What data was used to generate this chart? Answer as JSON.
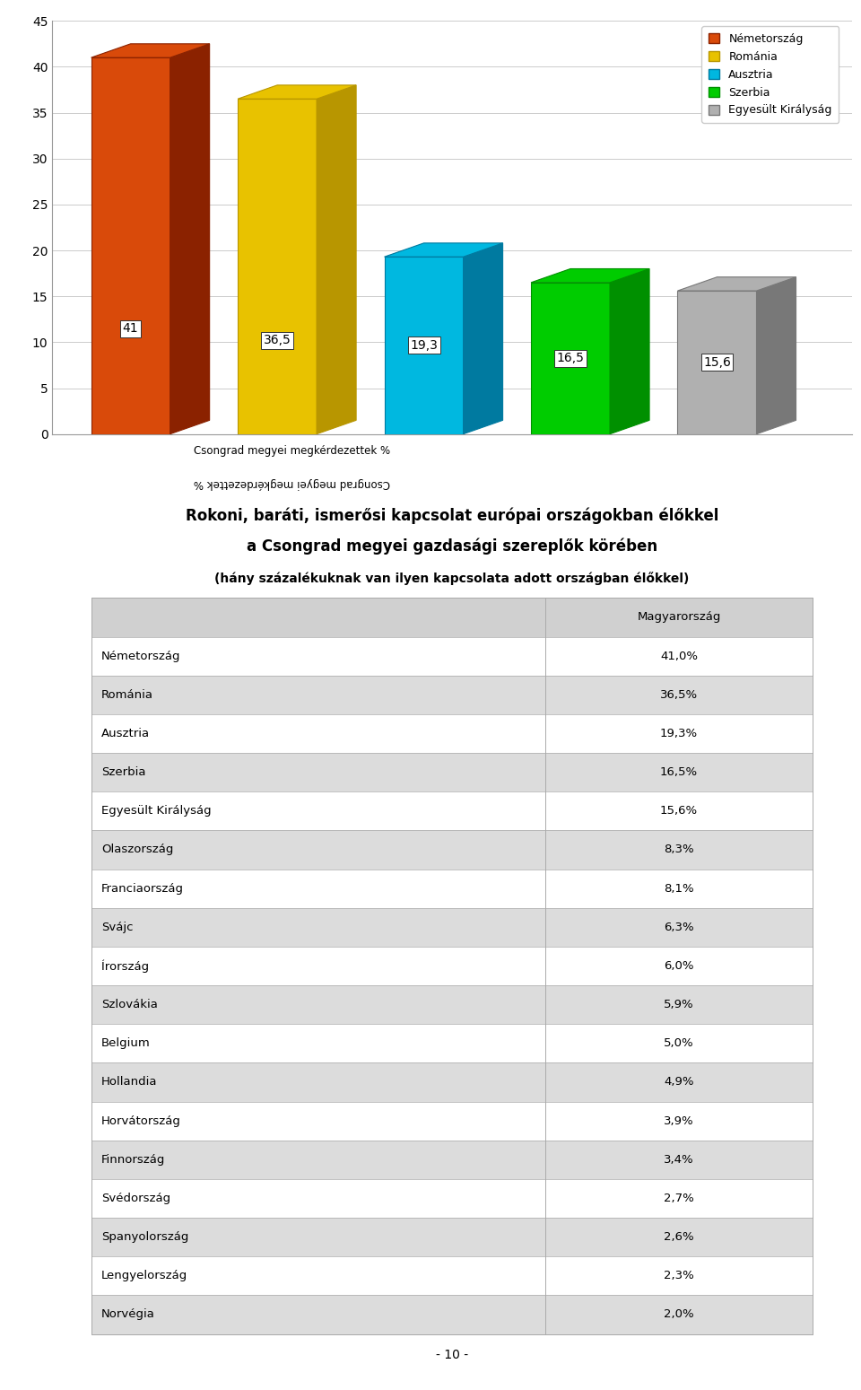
{
  "bar_categories": [
    "Németország",
    "Románia",
    "Ausztria",
    "Szerbia",
    "Egyesült Királyság"
  ],
  "bar_values": [
    41.0,
    36.5,
    19.3,
    16.5,
    15.6
  ],
  "bar_colors": [
    "#D94A0A",
    "#E8C200",
    "#00B8E0",
    "#00CC00",
    "#B0B0B0"
  ],
  "bar_dark_colors": [
    "#8B2200",
    "#B89600",
    "#007AA0",
    "#009000",
    "#787878"
  ],
  "bar_labels": [
    "41",
    "36,5",
    "19,3",
    "16,5",
    "15,6"
  ],
  "legend_labels": [
    "Németország",
    "Románia",
    "Ausztria",
    "Szerbia",
    "Egyesült Királyság"
  ],
  "legend_colors": [
    "#D94A0A",
    "#E8C200",
    "#00B8E0",
    "#00CC00",
    "#B0B0B0"
  ],
  "legend_edge_colors": [
    "#8B2200",
    "#B89600",
    "#007AA0",
    "#009000",
    "#787878"
  ],
  "ylabel": "Csongrad megyei megkérdezettek %",
  "ylim": [
    0,
    45
  ],
  "yticks": [
    0,
    5,
    10,
    15,
    20,
    25,
    30,
    35,
    40,
    45
  ],
  "title_line1": "Rokoni, baráti, ismerősi kapcsolat európai országokban élőkkel",
  "title_line2": "a Csongrad megyei gazdasági szereplők körében",
  "title_line3": "(hány százalékuknak van ilyen kapcsolata adott országban élőkkel)",
  "table_header": "Magyarország",
  "table_rows": [
    [
      "Németország",
      "41,0%"
    ],
    [
      "Románia",
      "36,5%"
    ],
    [
      "Ausztria",
      "19,3%"
    ],
    [
      "Szerbia",
      "16,5%"
    ],
    [
      "Egyesült Királyság",
      "15,6%"
    ],
    [
      "Olaszország",
      "8,3%"
    ],
    [
      "Franciaország",
      "8,1%"
    ],
    [
      "Svájc",
      "6,3%"
    ],
    [
      "Írország",
      "6,0%"
    ],
    [
      "Szlovákia",
      "5,9%"
    ],
    [
      "Belgium",
      "5,0%"
    ],
    [
      "Hollandia",
      "4,9%"
    ],
    [
      "Horvátország",
      "3,9%"
    ],
    [
      "Finnország",
      "3,4%"
    ],
    [
      "Svédország",
      "2,7%"
    ],
    [
      "Spanyolország",
      "2,6%"
    ],
    [
      "Lengyelország",
      "2,3%"
    ],
    [
      "Norvégia",
      "2,0%"
    ]
  ],
  "footer": "- 10 -",
  "bg_color": "#FFFFFF",
  "depth": 0.35
}
